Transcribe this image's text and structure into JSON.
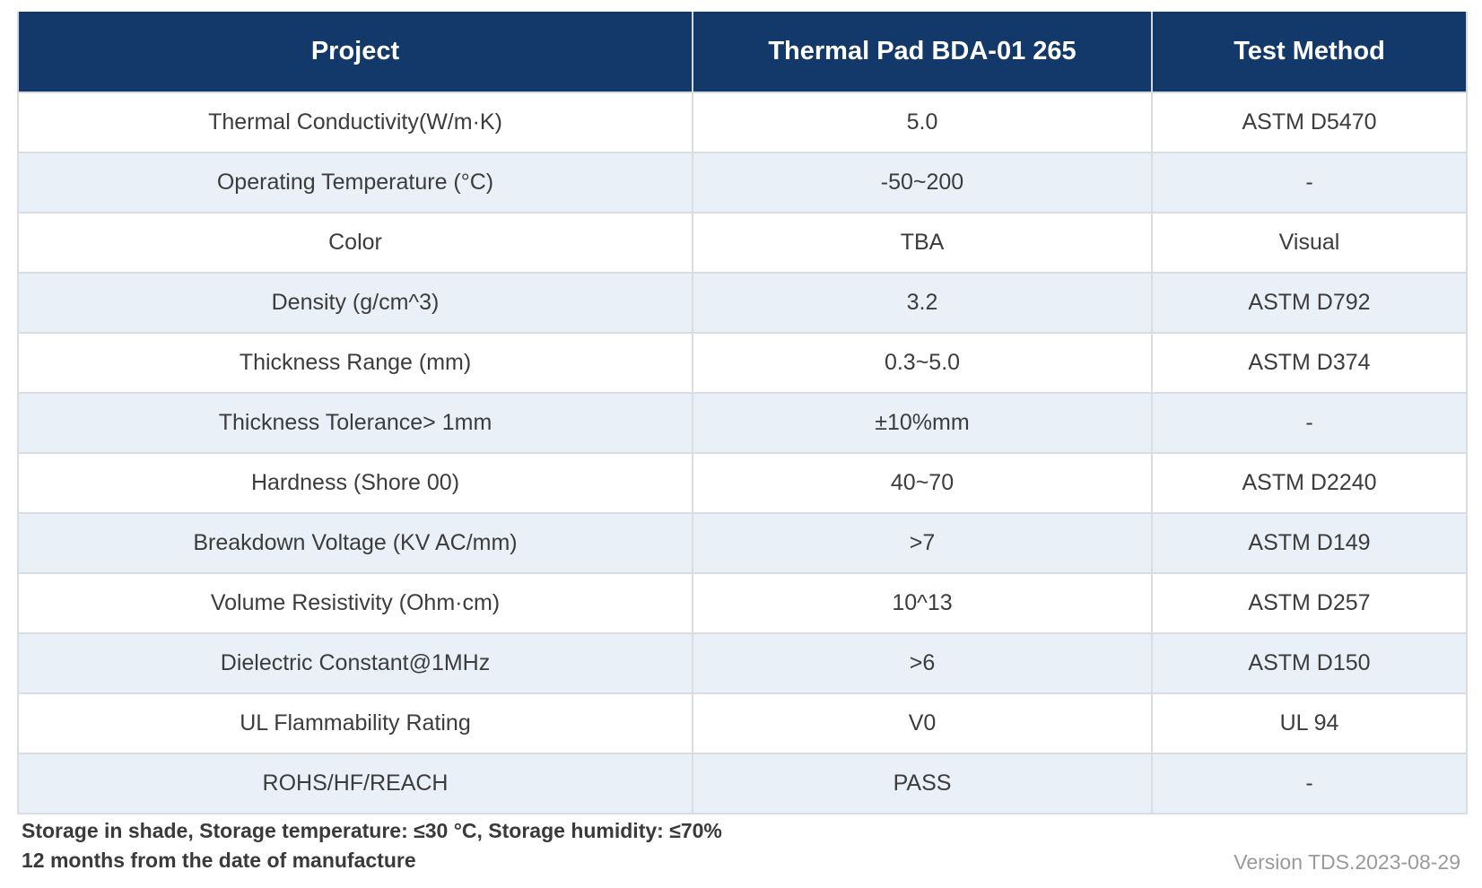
{
  "table": {
    "headers": [
      "Project",
      "Thermal Pad BDA-01 265",
      "Test Method"
    ],
    "rows": [
      [
        "Thermal Conductivity(W/m·K)",
        "5.0",
        "ASTM D5470"
      ],
      [
        "Operating Temperature (°C)",
        "-50~200",
        "-"
      ],
      [
        "Color",
        "TBA",
        "Visual"
      ],
      [
        "Density (g/cm^3)",
        "3.2",
        "ASTM D792"
      ],
      [
        "Thickness Range (mm)",
        "0.3~5.0",
        "ASTM D374"
      ],
      [
        "Thickness Tolerance> 1mm",
        "±10%mm",
        "-"
      ],
      [
        "Hardness (Shore 00)",
        "40~70",
        "ASTM D2240"
      ],
      [
        "Breakdown Voltage (KV AC/mm)",
        ">7",
        "ASTM D149"
      ],
      [
        "Volume Resistivity (Ohm·cm)",
        "10^13",
        "ASTM D257"
      ],
      [
        "Dielectric Constant@1MHz",
        ">6",
        "ASTM D150"
      ],
      [
        "UL Flammability Rating",
        "V0",
        "UL 94"
      ],
      [
        "ROHS/HF/REACH",
        "PASS",
        "-"
      ]
    ]
  },
  "footer": {
    "storage": "Storage in shade, Storage temperature: ≤30 °C,  Storage humidity: ≤70%",
    "shelf_life": "12 months from the date of manufacture",
    "version": "Version TDS.2023-08-29"
  },
  "colors": {
    "header_bg": "#13386a",
    "alt_row_bg": "#eaf0f7"
  }
}
